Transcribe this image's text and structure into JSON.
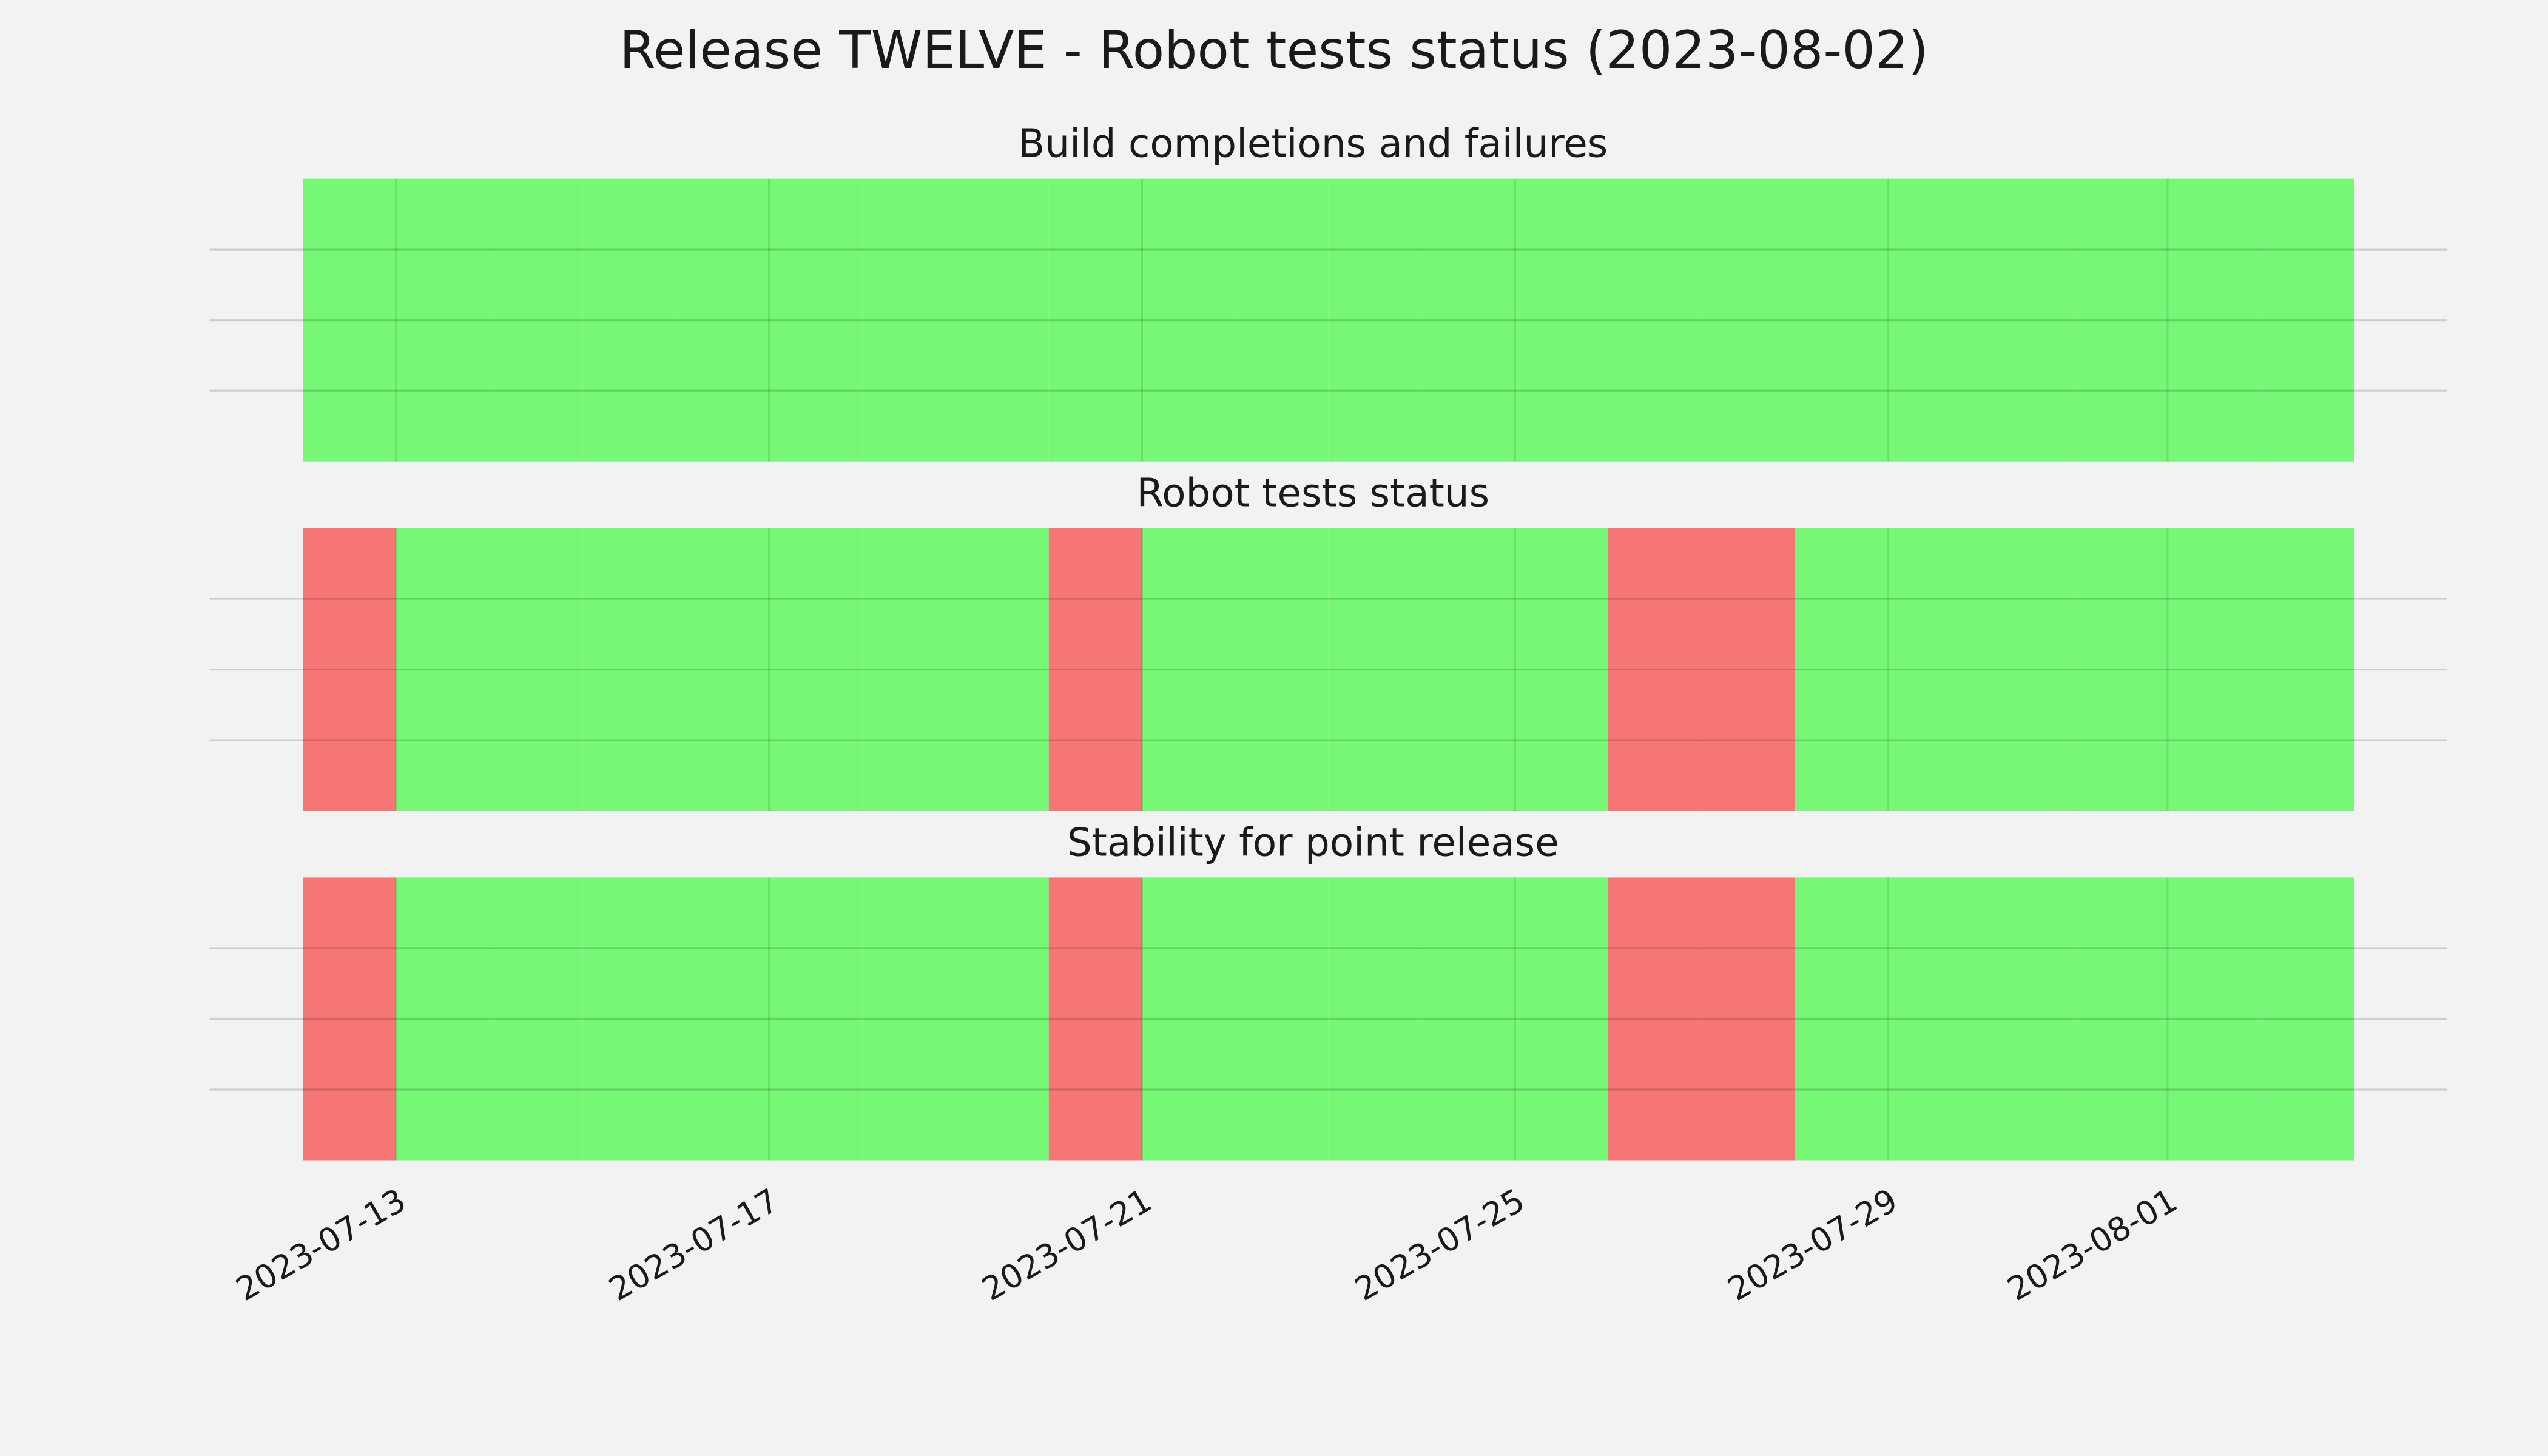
{
  "title": "Release TWELVE - Robot tests status (2023-08-02)",
  "chart_data": [
    {
      "type": "timeline",
      "title": "Build completions and failures",
      "x": [
        "2023-07-12",
        "2023-07-13",
        "2023-07-14",
        "2023-07-15",
        "2023-07-16",
        "2023-07-17",
        "2023-07-18",
        "2023-07-19",
        "2023-07-20",
        "2023-07-21",
        "2023-07-22",
        "2023-07-23",
        "2023-07-24",
        "2023-07-25",
        "2023-07-26",
        "2023-07-27",
        "2023-07-28",
        "2023-07-29",
        "2023-07-30",
        "2023-07-31",
        "2023-08-01",
        "2023-08-02"
      ],
      "values": [
        "pass",
        "pass",
        "pass",
        "pass",
        "pass",
        "pass",
        "pass",
        "pass",
        "pass",
        "pass",
        "pass",
        "pass",
        "pass",
        "pass",
        "pass",
        "pass",
        "pass",
        "pass",
        "pass",
        "pass",
        "pass",
        "pass"
      ],
      "colors": {
        "pass": "#76f776",
        "fail": "#f67676"
      },
      "xlim": [
        "2023-07-11",
        "2023-08-04"
      ],
      "xticks": [
        "2023-07-13",
        "2023-07-17",
        "2023-07-21",
        "2023-07-25",
        "2023-07-29",
        "2023-08-01"
      ],
      "ylim": [
        0,
        1
      ],
      "yticks": [
        0.25,
        0.5,
        0.75
      ],
      "grid": true
    },
    {
      "type": "timeline",
      "title": "Robot tests status",
      "x": [
        "2023-07-12",
        "2023-07-13",
        "2023-07-14",
        "2023-07-15",
        "2023-07-16",
        "2023-07-17",
        "2023-07-18",
        "2023-07-19",
        "2023-07-20",
        "2023-07-21",
        "2023-07-22",
        "2023-07-23",
        "2023-07-24",
        "2023-07-25",
        "2023-07-26",
        "2023-07-27",
        "2023-07-28",
        "2023-07-29",
        "2023-07-30",
        "2023-07-31",
        "2023-08-01",
        "2023-08-02"
      ],
      "values": [
        "fail",
        "pass",
        "pass",
        "pass",
        "pass",
        "pass",
        "pass",
        "pass",
        "fail",
        "pass",
        "pass",
        "pass",
        "pass",
        "pass",
        "fail",
        "fail",
        "pass",
        "pass",
        "pass",
        "pass",
        "pass",
        "pass"
      ],
      "colors": {
        "pass": "#76f776",
        "fail": "#f67676"
      },
      "xlim": [
        "2023-07-11",
        "2023-08-04"
      ],
      "xticks": [
        "2023-07-13",
        "2023-07-17",
        "2023-07-21",
        "2023-07-25",
        "2023-07-29",
        "2023-08-01"
      ],
      "ylim": [
        0,
        1
      ],
      "yticks": [
        0.25,
        0.5,
        0.75
      ],
      "grid": true
    },
    {
      "type": "timeline",
      "title": "Stability for point release",
      "x": [
        "2023-07-12",
        "2023-07-13",
        "2023-07-14",
        "2023-07-15",
        "2023-07-16",
        "2023-07-17",
        "2023-07-18",
        "2023-07-19",
        "2023-07-20",
        "2023-07-21",
        "2023-07-22",
        "2023-07-23",
        "2023-07-24",
        "2023-07-25",
        "2023-07-26",
        "2023-07-27",
        "2023-07-28",
        "2023-07-29",
        "2023-07-30",
        "2023-07-31",
        "2023-08-01",
        "2023-08-02"
      ],
      "values": [
        "fail",
        "pass",
        "pass",
        "pass",
        "pass",
        "pass",
        "pass",
        "pass",
        "fail",
        "pass",
        "pass",
        "pass",
        "pass",
        "pass",
        "fail",
        "fail",
        "pass",
        "pass",
        "pass",
        "pass",
        "pass",
        "pass"
      ],
      "colors": {
        "pass": "#76f776",
        "fail": "#f67676"
      },
      "xlim": [
        "2023-07-11",
        "2023-08-04"
      ],
      "xticks": [
        "2023-07-13",
        "2023-07-17",
        "2023-07-21",
        "2023-07-25",
        "2023-07-29",
        "2023-08-01"
      ],
      "ylim": [
        0,
        1
      ],
      "yticks": [
        0.25,
        0.5,
        0.75
      ],
      "grid": true
    }
  ]
}
